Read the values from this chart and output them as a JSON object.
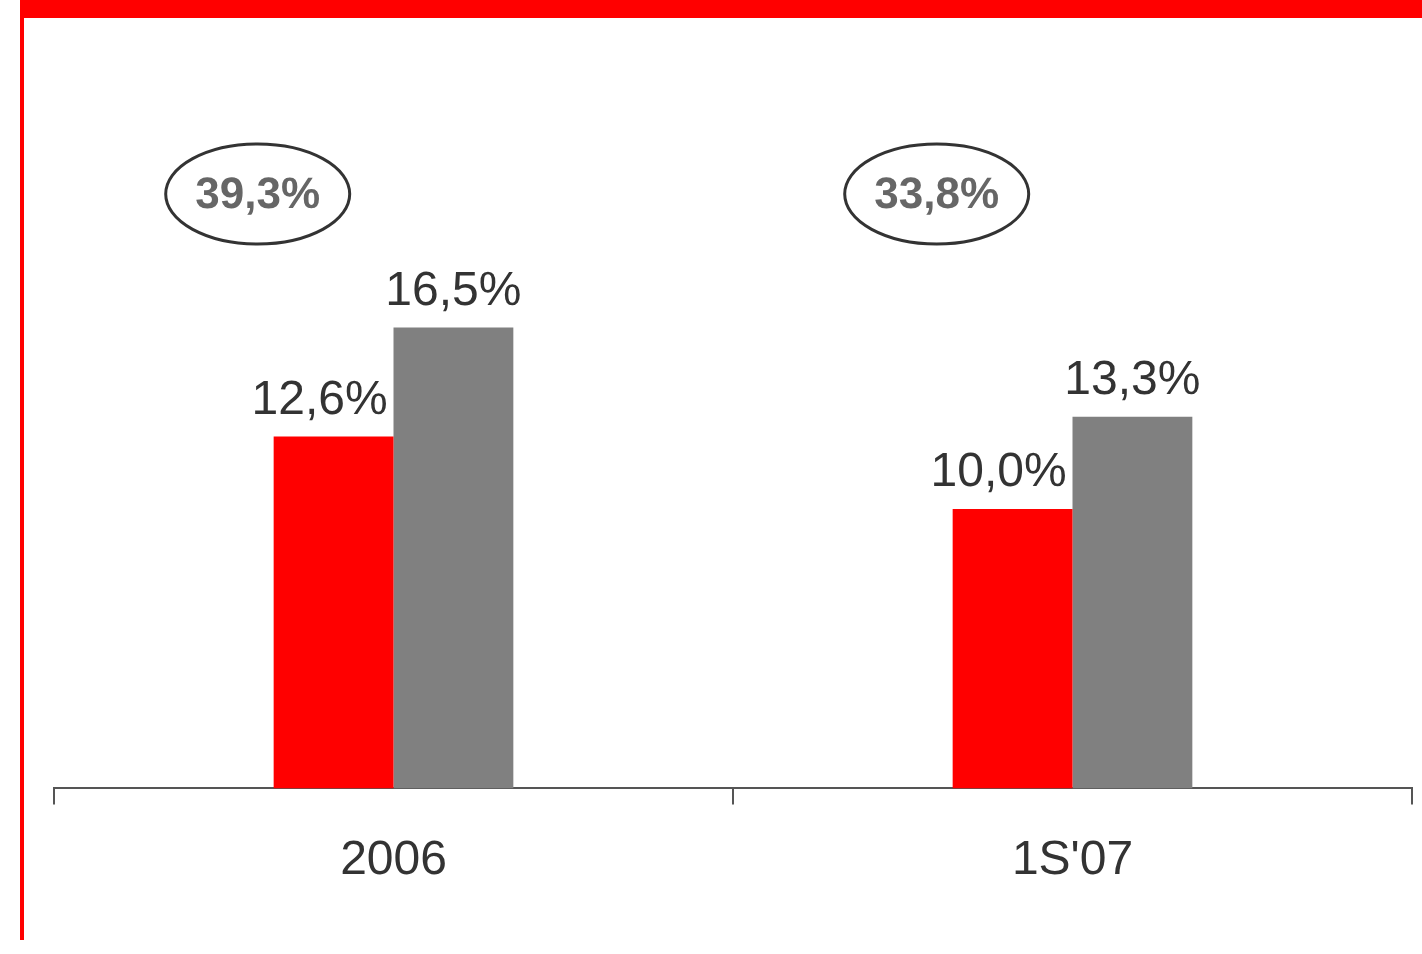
{
  "chart_data": {
    "type": "bar",
    "categories": [
      "2006",
      "1S'07"
    ],
    "series": [
      {
        "color": "#ff0000",
        "values": [
          12.6,
          10.0
        ],
        "value_labels": [
          "12,6%",
          "10,0%"
        ]
      },
      {
        "color": "#808080",
        "values": [
          16.5,
          13.3
        ],
        "value_labels": [
          "16,5%",
          "13,3%"
        ]
      }
    ],
    "tick_labels": "x",
    "grid": false,
    "legend": false,
    "annotations": [
      "39,3%",
      "33,8%"
    ]
  }
}
